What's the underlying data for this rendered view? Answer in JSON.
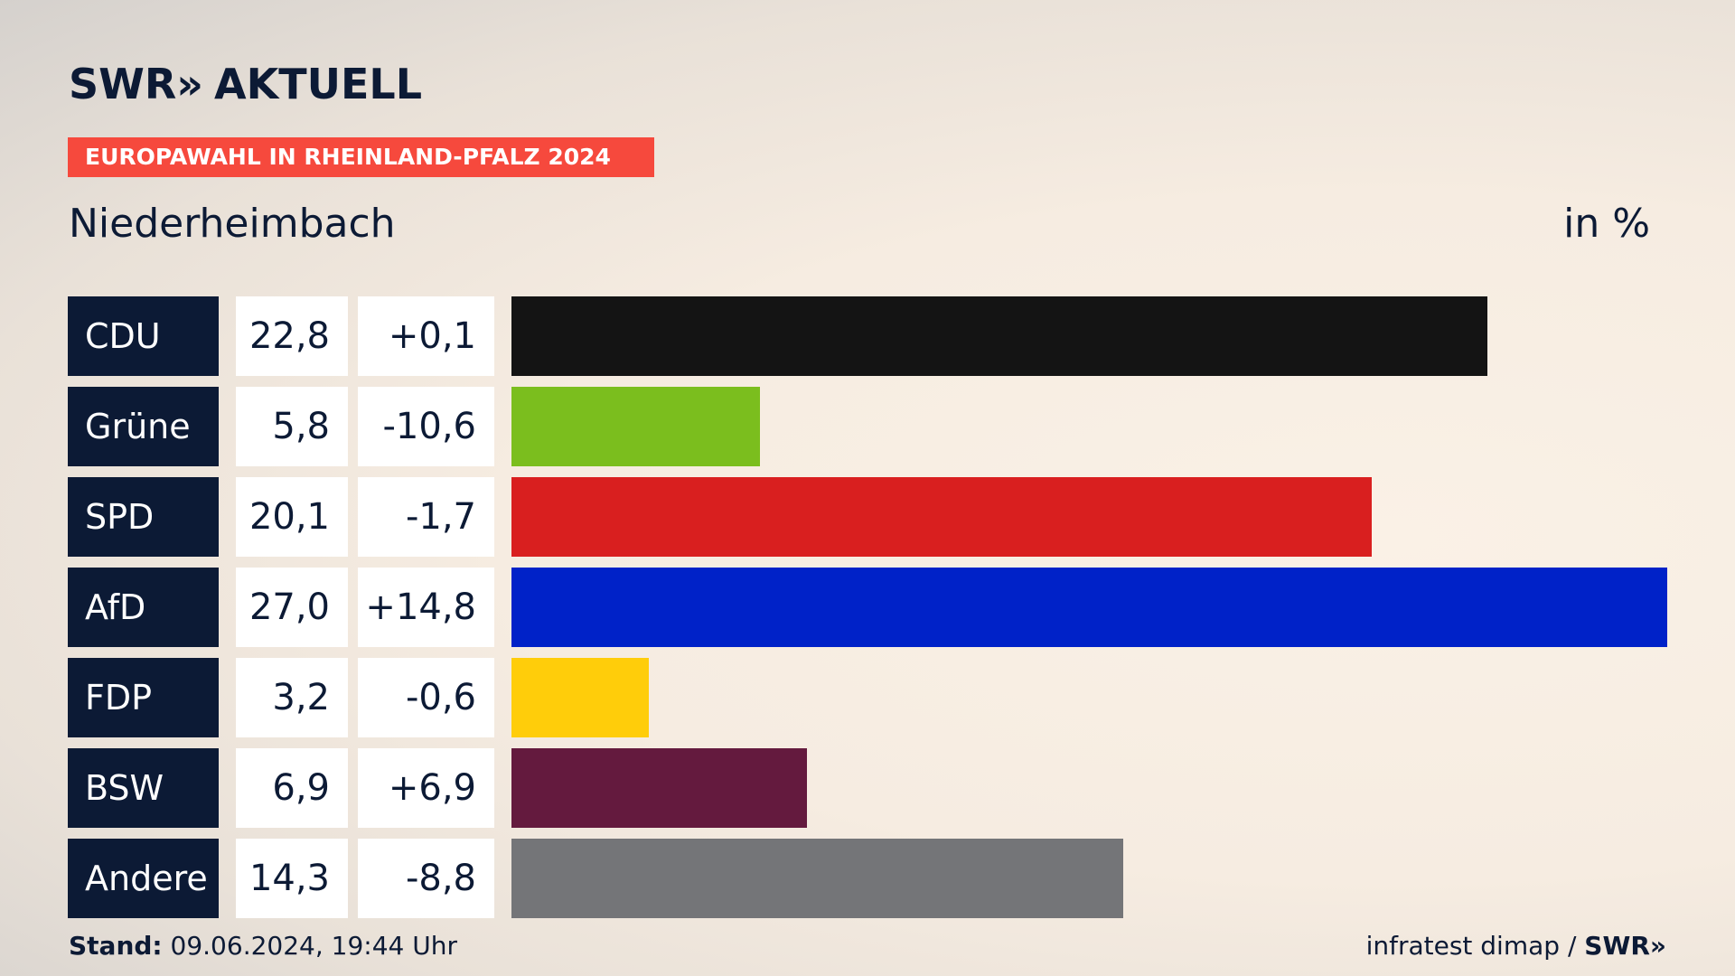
{
  "header": {
    "logo": "SWR",
    "logo_chevrons": "»",
    "logo_suffix": "AKTUELL",
    "banner": "EUROPAWAHL IN RHEINLAND-PFALZ 2024",
    "region": "Niederheimbach",
    "unit": "in %"
  },
  "footer": {
    "stand_label": "Stand:",
    "stand_value": "09.06.2024, 19:44 Uhr",
    "source": "infratest dimap /",
    "source_logo": "SWR»"
  },
  "chart_data": {
    "type": "bar",
    "orientation": "horizontal",
    "categories": [
      "CDU",
      "Grüne",
      "SPD",
      "AfD",
      "FDP",
      "BSW",
      "Andere"
    ],
    "values": [
      22.8,
      5.8,
      20.1,
      27.0,
      3.2,
      6.9,
      14.3
    ],
    "value_labels": [
      "22,8",
      "5,8",
      "20,1",
      "27,0",
      "3,2",
      "6,9",
      "14,3"
    ],
    "diff_labels": [
      "+0,1",
      "-10,6",
      "-1,7",
      "+14,8",
      "-0,6",
      "+6,9",
      "-8,8"
    ],
    "colors": [
      "#141414",
      "#7bbe1e",
      "#d91f1f",
      "#0022c8",
      "#ffcd0a",
      "#641a3e",
      "#747578"
    ],
    "xlim": [
      0,
      27.0
    ],
    "grid": false,
    "legend": "none"
  }
}
